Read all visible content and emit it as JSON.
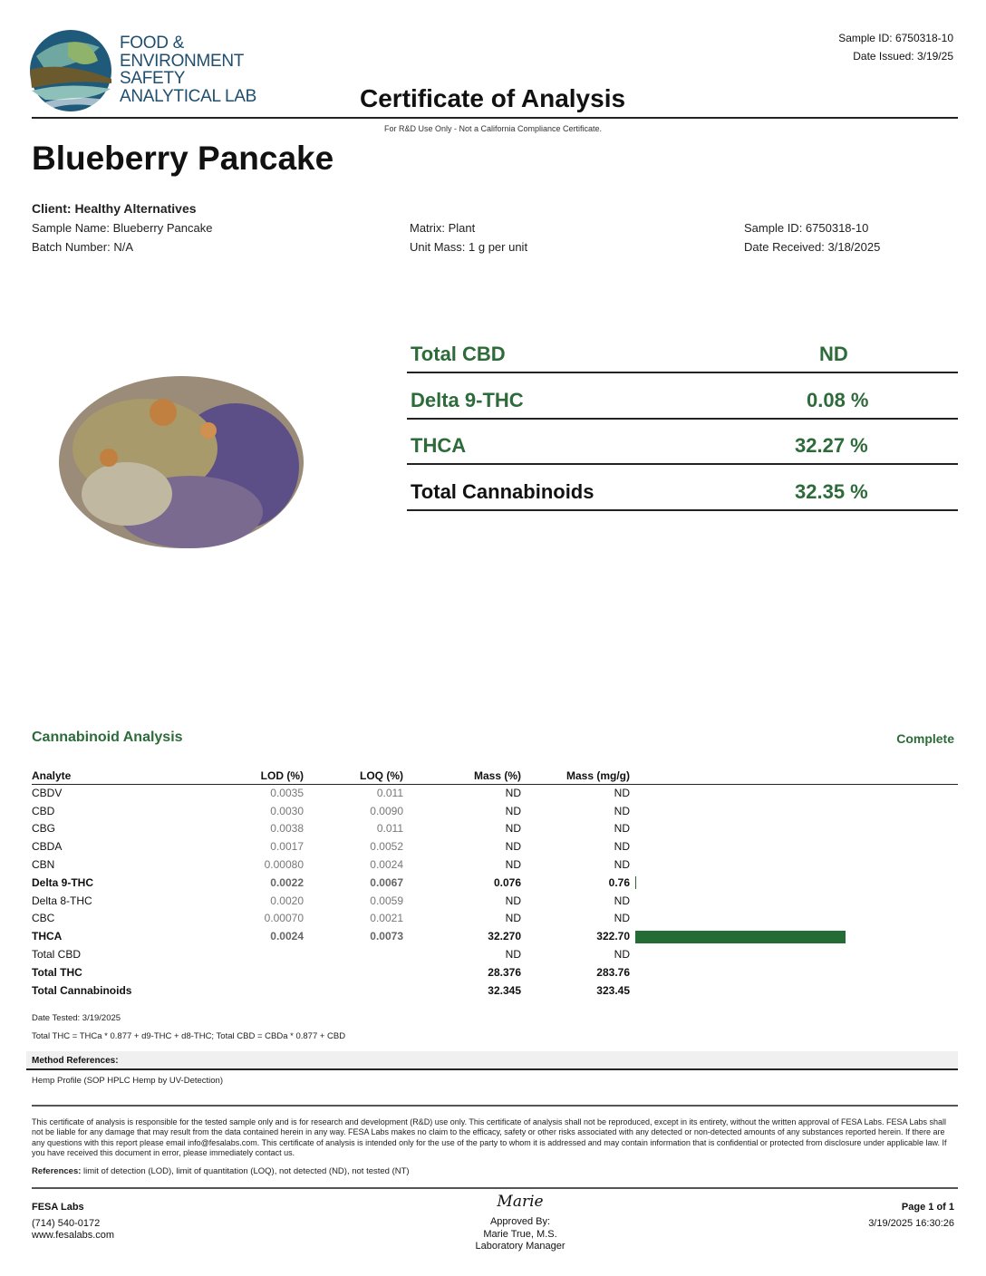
{
  "header": {
    "lab_name_lines": [
      "FOOD &",
      "ENVIRONMENT",
      "SAFETY",
      "ANALYTICAL LAB"
    ],
    "sample_id": "Sample ID: 6750318-10",
    "date_issued": "Date Issued: 3/19/25",
    "title": "Certificate of Analysis",
    "disclaimer": "For R&D Use Only - Not a California Compliance Certificate."
  },
  "product": "Blueberry Pancake",
  "info": {
    "client": "Client: Healthy Alternatives",
    "sample_name": "Sample Name: Blueberry Pancake",
    "batch": "Batch Number: N/A",
    "matrix": "Matrix: Plant",
    "unit_mass": "Unit Mass: 1 g per unit",
    "sample_id": "Sample ID: 6750318-10",
    "date_received": "Date Received: 3/18/2025"
  },
  "summary": [
    {
      "label": "Total CBD",
      "value": "ND"
    },
    {
      "label": "Delta 9-THC",
      "value": "0.08 %"
    },
    {
      "label": "THCA",
      "value": "32.27 %"
    },
    {
      "label": "Total Cannabinoids",
      "value": "32.35 %"
    }
  ],
  "analysis": {
    "title": "Cannabinoid Analysis",
    "status": "Complete",
    "columns": [
      "Analyte",
      "LOD (%)",
      "LOQ (%)",
      "Mass (%)",
      "Mass (mg/g)"
    ],
    "rows": [
      {
        "analyte": "CBDV",
        "lod": "0.0035",
        "loq": "0.011",
        "pct": "ND",
        "mg": "ND",
        "bold": false,
        "mg_value": 0
      },
      {
        "analyte": "CBD",
        "lod": "0.0030",
        "loq": "0.0090",
        "pct": "ND",
        "mg": "ND",
        "bold": false,
        "mg_value": 0
      },
      {
        "analyte": "CBG",
        "lod": "0.0038",
        "loq": "0.011",
        "pct": "ND",
        "mg": "ND",
        "bold": false,
        "mg_value": 0
      },
      {
        "analyte": "CBDA",
        "lod": "0.0017",
        "loq": "0.0052",
        "pct": "ND",
        "mg": "ND",
        "bold": false,
        "mg_value": 0
      },
      {
        "analyte": "CBN",
        "lod": "0.00080",
        "loq": "0.0024",
        "pct": "ND",
        "mg": "ND",
        "bold": false,
        "mg_value": 0
      },
      {
        "analyte": "Delta 9-THC",
        "lod": "0.0022",
        "loq": "0.0067",
        "pct": "0.076",
        "mg": "0.76",
        "bold": true,
        "mg_value": 0.76
      },
      {
        "analyte": "Delta 8-THC",
        "lod": "0.0020",
        "loq": "0.0059",
        "pct": "ND",
        "mg": "ND",
        "bold": false,
        "mg_value": 0
      },
      {
        "analyte": "CBC",
        "lod": "0.00070",
        "loq": "0.0021",
        "pct": "ND",
        "mg": "ND",
        "bold": false,
        "mg_value": 0
      },
      {
        "analyte": "THCA",
        "lod": "0.0024",
        "loq": "0.0073",
        "pct": "32.270",
        "mg": "322.70",
        "bold": true,
        "mg_value": 322.7
      },
      {
        "analyte": "Total CBD",
        "lod": "",
        "loq": "",
        "pct": "ND",
        "mg": "ND",
        "bold": false,
        "mg_value": 0
      },
      {
        "analyte": "Total THC",
        "lod": "",
        "loq": "",
        "pct": "28.376",
        "mg": "283.76",
        "bold": true,
        "mg_value": 0
      },
      {
        "analyte": "Total Cannabinoids",
        "lod": "",
        "loq": "",
        "pct": "32.345",
        "mg": "323.45",
        "bold": true,
        "mg_value": 0
      }
    ],
    "bar_color": "#256b35",
    "date_tested": "Date Tested: 3/19/2025",
    "formula": "Total THC = THCa * 0.877 + d9-THC + d8-THC; Total CBD = CBDa * 0.877 + CBD"
  },
  "methods": {
    "title": "Method References:",
    "text": "Hemp Profile (SOP HPLC Hemp by UV-Detection)"
  },
  "disclaimer": "This certificate of analysis is responsible for the tested sample only and is for research and development (R&D) use only. This certificate of analysis shall not be reproduced, except in its entirety, without the written approval of FESA Labs. FESA Labs shall not be liable for any damage that may result from the data contained herein in any way. FESA Labs makes no claim to the efficacy, safety or other risks associated with any detected or non-detected amounts of any substances reported herein. If there are any questions with this report please email info@fesalabs.com. This certificate of analysis is intended only for the use of the party to whom it is addressed and may contain information that is confidential or protected from disclosure under applicable law. If you have received this document in error, please immediately contact us.",
  "references": {
    "label": "References:",
    "text": " limit of detection (LOD), limit of quantitation (LOQ), not detected (ND), not tested (NT)"
  },
  "footer": {
    "company": "FESA Labs",
    "phone": "(714) 540-0172",
    "website": "www.fesalabs.com",
    "signature": "Marie",
    "approved": "Approved By:",
    "approver": "Marie True, M.S.",
    "role": "Laboratory Manager",
    "page": "Page 1 of 1",
    "timestamp": "3/19/2025 16:30:26"
  }
}
